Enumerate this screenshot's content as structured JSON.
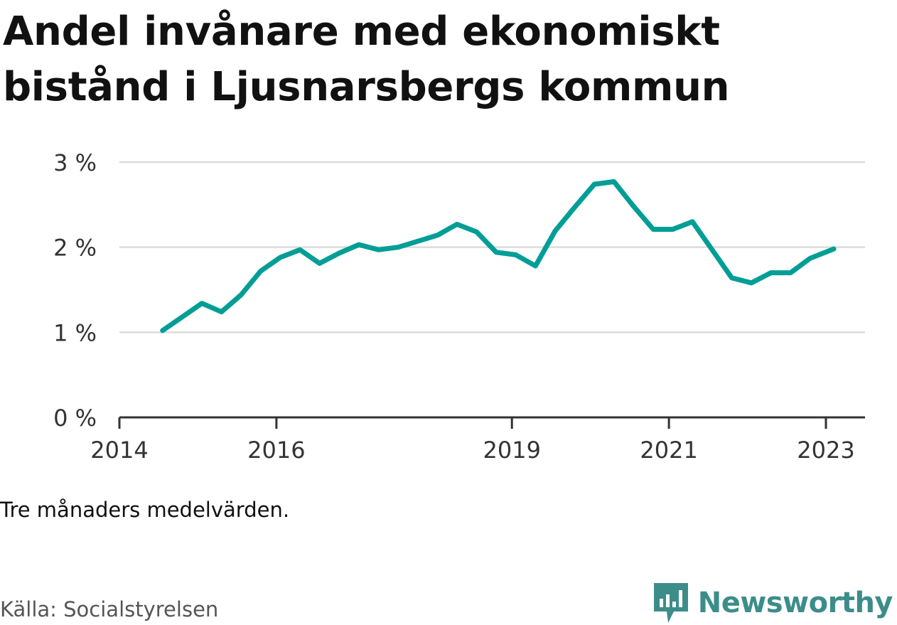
{
  "header": {
    "title": "Andel invånare med ekonomiskt bistånd i Ljusnarsbergs kommun"
  },
  "chart_data": {
    "type": "line",
    "title": "Andel invånare med ekonomiskt bistånd i Ljusnarsbergs kommun",
    "xlabel": "",
    "ylabel": "",
    "ylim": [
      0,
      3
    ],
    "xlim": [
      2014.0,
      2023.5
    ],
    "y_ticks": [
      0,
      1,
      2,
      3
    ],
    "y_tick_labels": [
      "0 %",
      "1 %",
      "2 %",
      "3 %"
    ],
    "x_ticks": [
      2014,
      2016,
      2019,
      2021,
      2023
    ],
    "x_tick_labels": [
      "2014",
      "2016",
      "2019",
      "2021",
      "2023"
    ],
    "grid": true,
    "line_color": "#009e96",
    "series": [
      {
        "x": [
          2014.55,
          2014.8,
          2015.05,
          2015.3,
          2015.55,
          2015.8,
          2016.05,
          2016.3,
          2016.55,
          2016.8,
          2017.05,
          2017.3,
          2017.55,
          2017.8,
          2018.05,
          2018.3,
          2018.55,
          2018.8,
          2019.05,
          2019.3,
          2019.55,
          2019.8,
          2020.05,
          2020.3,
          2020.55,
          2020.8,
          2021.05,
          2021.3,
          2021.55,
          2021.8,
          2022.05,
          2022.3,
          2022.55,
          2022.8,
          2023.1
        ],
        "y": [
          1.02,
          1.18,
          1.34,
          1.24,
          1.44,
          1.72,
          1.88,
          1.97,
          1.81,
          1.93,
          2.03,
          1.97,
          2.0,
          2.07,
          2.14,
          2.27,
          2.18,
          1.94,
          1.91,
          1.78,
          2.19,
          2.47,
          2.74,
          2.77,
          2.48,
          2.21,
          2.21,
          2.3,
          1.97,
          1.64,
          1.58,
          1.7,
          1.7,
          1.87,
          1.98
        ]
      }
    ]
  },
  "footer": {
    "note": "Tre månaders medelvärden.",
    "source": "Källa: Socialstyrelsen",
    "brand": "Newsworthy",
    "brand_color": "#3c8d8a",
    "brand_icon": "newsworthy-logo-icon"
  }
}
